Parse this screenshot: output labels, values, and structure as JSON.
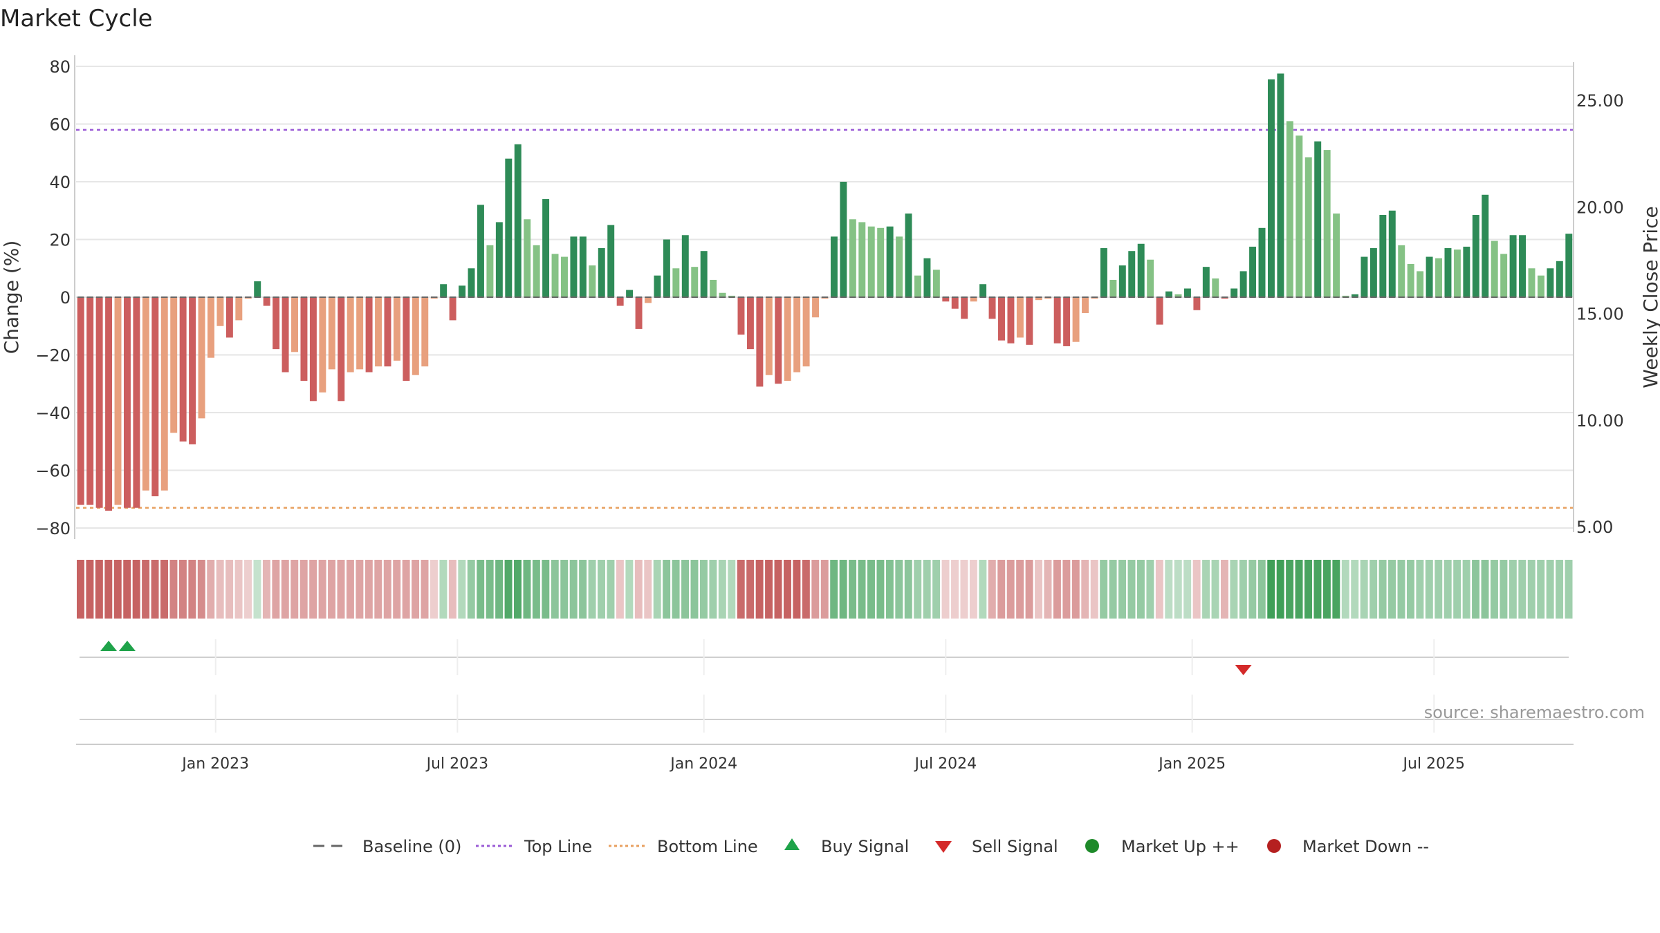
{
  "chart_data": {
    "type": "bar",
    "title": "Market Cycle",
    "ylabel": "Change (%)",
    "ylabel_right": "Weekly Close Price",
    "ylim": [
      -85,
      80
    ],
    "y_ticks": [
      80,
      60,
      40,
      20,
      0,
      -20,
      -40,
      -60,
      -80
    ],
    "y_tick_labels": [
      "80",
      "60",
      "40",
      "20",
      "0",
      "−20",
      "−40",
      "−60",
      "−80"
    ],
    "right_ticks": [
      25,
      20,
      15,
      10,
      5
    ],
    "right_tick_labels": [
      "25.00",
      "20.00",
      "15.00",
      "10.00",
      "5.00"
    ],
    "right_ylim": [
      3.2,
      27.3
    ],
    "top_line": 58,
    "bottom_line": -73,
    "x_tick_labels": [
      "Jan 2023",
      "Jul 2023",
      "Jan 2024",
      "Jul 2024",
      "Jan 2025",
      "Jul 2025"
    ],
    "x_tick_positions": [
      15,
      41,
      67.5,
      93.5,
      120,
      146
    ],
    "values": [
      -72,
      -72,
      -73,
      -74,
      -72,
      -73,
      -73,
      -67,
      -69,
      -67,
      -47,
      -50,
      -51,
      -42,
      -21,
      -10,
      -14,
      -8,
      -0.5,
      5.5,
      -3,
      -18,
      -26,
      -19,
      -29,
      -36,
      -33,
      -25,
      -36,
      -26,
      -25,
      -26,
      -24,
      -24,
      -22,
      -29,
      -27,
      -24,
      -0.5,
      4.5,
      -8,
      4,
      10,
      32,
      18,
      26,
      48,
      53,
      27,
      18,
      34,
      15,
      14,
      21,
      21,
      11,
      17,
      25,
      -3,
      2.5,
      -11,
      -2,
      7.5,
      20,
      10,
      21.5,
      10.5,
      16,
      6,
      1.5,
      0.5,
      -13,
      -18,
      -31,
      -27,
      -30,
      -29,
      -26,
      -24,
      -7,
      -0.5,
      21,
      40,
      27,
      26,
      24.5,
      24,
      24.5,
      21,
      29,
      7.5,
      13.5,
      9.5,
      -1.5,
      -4,
      -7.5,
      -1.5,
      4.5,
      -7.5,
      -15,
      -16,
      -14,
      -16.5,
      -1,
      -0.5,
      -16,
      -17,
      -15.5,
      -5.5,
      -0.5,
      17,
      6,
      11,
      16,
      18.5,
      13,
      -9.5,
      2,
      1,
      3,
      -4.5,
      10.5,
      6.5,
      -0.5,
      3,
      9,
      17.5,
      24,
      75.5,
      77.5,
      61,
      56,
      48.5,
      54,
      51,
      29,
      0.5,
      1,
      14,
      17,
      28.5,
      30,
      18,
      11.5,
      9,
      14,
      13.5,
      17,
      16.5,
      17.5,
      28.5,
      35.5,
      19.5,
      15,
      21.5,
      21.5,
      10,
      7.5,
      10,
      12.5,
      22
    ],
    "cycle_scores": [
      0.95,
      0.95,
      0.95,
      0.95,
      0.95,
      0.95,
      0.95,
      0.9,
      0.9,
      0.9,
      0.75,
      0.75,
      0.75,
      0.7,
      0.5,
      0.4,
      0.4,
      0.35,
      0.3,
      0.3,
      0.45,
      0.55,
      0.55,
      0.55,
      0.55,
      0.55,
      0.55,
      0.55,
      0.55,
      0.55,
      0.55,
      0.55,
      0.55,
      0.55,
      0.55,
      0.55,
      0.55,
      0.55,
      0.3,
      0.4,
      0.4,
      0.4,
      0.55,
      0.7,
      0.7,
      0.75,
      0.9,
      0.9,
      0.75,
      0.7,
      0.7,
      0.6,
      0.6,
      0.6,
      0.6,
      0.5,
      0.5,
      0.5,
      0.35,
      0.4,
      0.4,
      0.35,
      0.45,
      0.6,
      0.6,
      0.6,
      0.6,
      0.55,
      0.5,
      0.45,
      0.4,
      0.9,
      0.9,
      0.95,
      0.95,
      0.95,
      0.95,
      0.95,
      0.9,
      0.6,
      0.6,
      0.75,
      0.75,
      0.7,
      0.7,
      0.7,
      0.7,
      0.65,
      0.6,
      0.6,
      0.5,
      0.5,
      0.5,
      0.3,
      0.3,
      0.3,
      0.3,
      0.4,
      0.5,
      0.6,
      0.6,
      0.6,
      0.6,
      0.35,
      0.45,
      0.6,
      0.6,
      0.6,
      0.45,
      0.35,
      0.55,
      0.55,
      0.55,
      0.55,
      0.55,
      0.5,
      0.35,
      0.35,
      0.35,
      0.35,
      0.35,
      0.45,
      0.45,
      0.45,
      0.45,
      0.5,
      0.55,
      0.6,
      1.0,
      1.0,
      0.95,
      0.95,
      0.95,
      0.95,
      0.95,
      0.95,
      0.4,
      0.4,
      0.45,
      0.5,
      0.55,
      0.55,
      0.55,
      0.55,
      0.5,
      0.5,
      0.5,
      0.5,
      0.5,
      0.5,
      0.6,
      0.6,
      0.55,
      0.55,
      0.5,
      0.5,
      0.5,
      0.5,
      0.5,
      0.5,
      0.5
    ],
    "buy_signals": [
      3,
      5
    ],
    "sell_signals": [
      125
    ],
    "source": "source: sharemaestro.com",
    "legend": [
      "Baseline (0)",
      "Top Line",
      "Bottom Line",
      "Buy Signal",
      "Sell Signal",
      "Market Up ++",
      "Market Down --"
    ],
    "colors": {
      "up_strong": "#2e8b57",
      "up_weak": "#85c285",
      "down_strong": "#cc5e5e",
      "down_weak": "#e8a07e",
      "top_line": "#9a5ad6",
      "bottom_line": "#e8a060",
      "buy": "#1fa34a",
      "sell": "#d42a2a",
      "market_up": "#1e8a2a",
      "market_down": "#b52020",
      "strip_up": "#3f9f58",
      "strip_down": "#c35a5a"
    }
  }
}
